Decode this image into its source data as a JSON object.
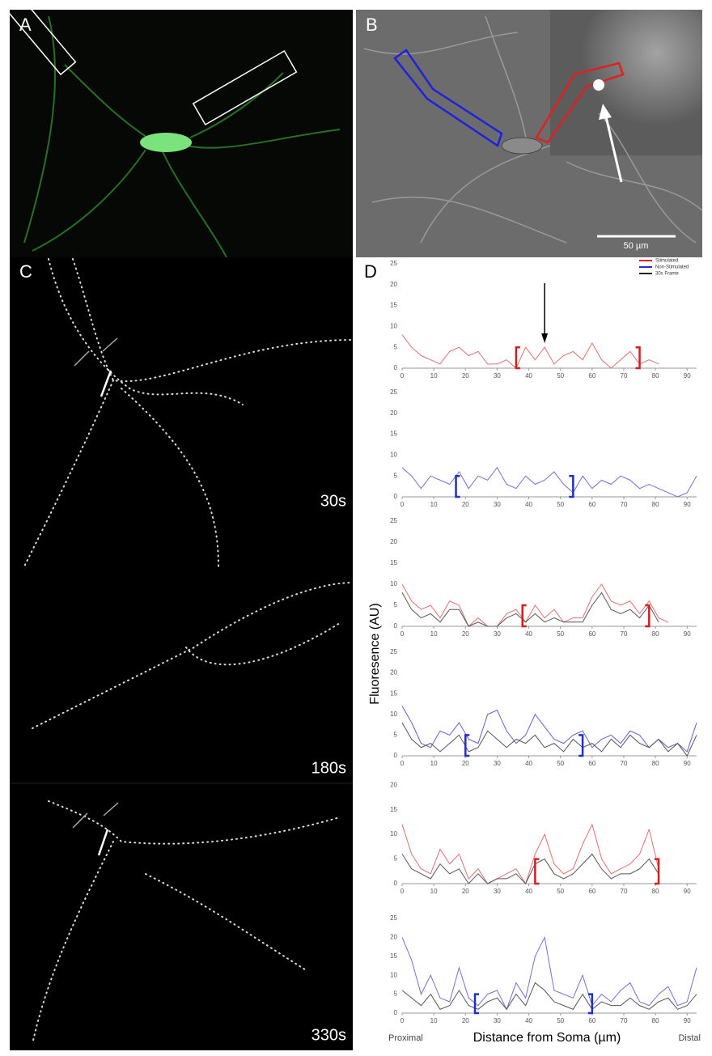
{
  "panel_labels": {
    "a": "A",
    "b": "B",
    "c": "C",
    "d": "D"
  },
  "scale_bar": "50 µm",
  "time_labels": [
    "30s",
    "180s",
    "330s"
  ],
  "legend": [
    {
      "name": "Stimulated",
      "color": "#e02020"
    },
    {
      "name": "Non-Stimulated",
      "color": "#2030d0"
    },
    {
      "name": "30s Frame",
      "color": "#222222"
    }
  ],
  "y_label": "Fluoresence (AU)",
  "x_label": "Distance from Soma (µm)",
  "x_start_label": "Proximal",
  "x_end_label": "Distal",
  "chart_data": [
    {
      "type": "line",
      "x": [
        0,
        3,
        6,
        9,
        12,
        15,
        18,
        21,
        24,
        27,
        30,
        33,
        36,
        39,
        42,
        45,
        48,
        51,
        54,
        57,
        60,
        63,
        66,
        69,
        72,
        75,
        78,
        81,
        84,
        87,
        90,
        93
      ],
      "series": [
        {
          "color": "#e07070",
          "values": [
            8,
            5,
            3,
            2,
            1,
            4,
            5,
            3,
            4,
            1,
            1,
            2,
            0,
            5,
            2,
            5,
            1,
            3,
            4,
            2,
            6,
            2,
            0,
            2,
            4,
            1,
            2,
            1,
            null,
            null,
            null,
            null
          ]
        }
      ],
      "xlim": [
        0,
        93
      ],
      "ylim": [
        0,
        25
      ],
      "xticks": [
        0,
        10,
        20,
        30,
        40,
        50,
        60,
        70,
        80,
        90
      ],
      "yticks": [
        0,
        5,
        10,
        15,
        20,
        25
      ],
      "brackets": [
        36,
        75
      ],
      "bracket_color": "#d02020",
      "arrow_x": 45
    },
    {
      "type": "line",
      "x": [
        0,
        3,
        6,
        9,
        12,
        15,
        18,
        21,
        24,
        27,
        30,
        33,
        36,
        39,
        42,
        45,
        48,
        51,
        54,
        57,
        60,
        63,
        66,
        69,
        72,
        75,
        78,
        81,
        84,
        87,
        90,
        93
      ],
      "series": [
        {
          "color": "#7070d8",
          "values": [
            7,
            5,
            2,
            5,
            4,
            3,
            6,
            2,
            5,
            4,
            7,
            3,
            2,
            5,
            3,
            4,
            6,
            3,
            1,
            5,
            2,
            4,
            3,
            5,
            4,
            2,
            3,
            2,
            1,
            0,
            1,
            5
          ]
        }
      ],
      "xlim": [
        0,
        93
      ],
      "ylim": [
        0,
        25
      ],
      "xticks": [
        0,
        10,
        20,
        30,
        40,
        50,
        60,
        70,
        80,
        90
      ],
      "yticks": [
        0,
        5,
        10,
        15,
        20,
        25
      ],
      "brackets": [
        17,
        54
      ],
      "bracket_color": "#2030c0"
    },
    {
      "type": "line",
      "x": [
        0,
        3,
        6,
        9,
        12,
        15,
        18,
        21,
        24,
        27,
        30,
        33,
        36,
        39,
        42,
        45,
        48,
        51,
        54,
        57,
        60,
        63,
        66,
        69,
        72,
        75,
        78,
        81,
        84,
        87,
        90,
        93
      ],
      "series": [
        {
          "color": "#e07070",
          "values": [
            10,
            6,
            4,
            5,
            2,
            6,
            5,
            0,
            2,
            0,
            0,
            3,
            4,
            1,
            5,
            2,
            4,
            1,
            2,
            2,
            7,
            10,
            6,
            5,
            6,
            3,
            6,
            2,
            1,
            null,
            null,
            null
          ]
        },
        {
          "color": "#555555",
          "values": [
            8,
            4,
            2,
            3,
            1,
            4,
            4,
            0,
            1,
            0,
            0,
            2,
            3,
            1,
            3,
            1,
            2,
            1,
            1,
            1,
            5,
            8,
            4,
            3,
            4,
            2,
            5,
            1,
            null,
            null,
            null,
            null
          ]
        }
      ],
      "xlim": [
        0,
        93
      ],
      "ylim": [
        0,
        25
      ],
      "xticks": [
        0,
        10,
        20,
        30,
        40,
        50,
        60,
        70,
        80,
        90
      ],
      "yticks": [
        0,
        5,
        10,
        15,
        20,
        25
      ],
      "brackets": [
        38,
        78
      ],
      "bracket_color": "#d02020"
    },
    {
      "type": "line",
      "x": [
        0,
        3,
        6,
        9,
        12,
        15,
        18,
        21,
        24,
        27,
        30,
        33,
        36,
        39,
        42,
        45,
        48,
        51,
        54,
        57,
        60,
        63,
        66,
        69,
        72,
        75,
        78,
        81,
        84,
        87,
        90,
        93
      ],
      "series": [
        {
          "color": "#6060d0",
          "values": [
            12,
            8,
            3,
            2,
            6,
            5,
            8,
            4,
            3,
            10,
            11,
            6,
            3,
            5,
            10,
            7,
            4,
            3,
            5,
            6,
            2,
            4,
            5,
            3,
            6,
            5,
            2,
            4,
            2,
            3,
            1,
            8
          ]
        },
        {
          "color": "#555555",
          "values": [
            8,
            4,
            2,
            3,
            1,
            3,
            5,
            1,
            2,
            6,
            4,
            2,
            4,
            3,
            5,
            2,
            3,
            1,
            4,
            2,
            3,
            1,
            4,
            2,
            5,
            3,
            2,
            4,
            1,
            3,
            0,
            5
          ]
        }
      ],
      "xlim": [
        0,
        93
      ],
      "ylim": [
        0,
        25
      ],
      "xticks": [
        0,
        10,
        20,
        30,
        40,
        50,
        60,
        70,
        80,
        90
      ],
      "yticks": [
        0,
        5,
        10,
        15,
        20,
        25
      ],
      "brackets": [
        20,
        57
      ],
      "bracket_color": "#2030c0"
    },
    {
      "type": "line",
      "x": [
        0,
        3,
        6,
        9,
        12,
        15,
        18,
        21,
        24,
        27,
        30,
        33,
        36,
        39,
        42,
        45,
        48,
        51,
        54,
        57,
        60,
        63,
        66,
        69,
        72,
        75,
        78,
        81,
        84,
        87,
        90,
        93
      ],
      "series": [
        {
          "color": "#e07070",
          "values": [
            12,
            6,
            3,
            2,
            7,
            4,
            6,
            1,
            3,
            0,
            1,
            2,
            3,
            0,
            6,
            10,
            4,
            2,
            3,
            8,
            12,
            5,
            2,
            3,
            4,
            6,
            11,
            3,
            null,
            null,
            null,
            null
          ]
        },
        {
          "color": "#555555",
          "values": [
            6,
            3,
            2,
            1,
            4,
            2,
            3,
            0,
            2,
            0,
            1,
            1,
            2,
            0,
            4,
            5,
            2,
            1,
            2,
            4,
            6,
            3,
            1,
            2,
            2,
            3,
            5,
            2,
            null,
            null,
            null,
            null
          ]
        }
      ],
      "xlim": [
        0,
        93
      ],
      "ylim": [
        0,
        23
      ],
      "xticks": [
        0,
        10,
        20,
        30,
        40,
        50,
        60,
        70,
        80,
        90
      ],
      "yticks": [
        0,
        5,
        10,
        15,
        20
      ],
      "brackets": [
        42,
        81
      ],
      "bracket_color": "#d02020"
    },
    {
      "type": "line",
      "x": [
        0,
        3,
        6,
        9,
        12,
        15,
        18,
        21,
        24,
        27,
        30,
        33,
        36,
        39,
        42,
        45,
        48,
        51,
        54,
        57,
        60,
        63,
        66,
        69,
        72,
        75,
        78,
        81,
        84,
        87,
        90,
        93
      ],
      "series": [
        {
          "color": "#7070d8",
          "values": [
            20,
            14,
            5,
            10,
            4,
            3,
            12,
            4,
            2,
            5,
            6,
            1,
            8,
            4,
            15,
            20,
            6,
            5,
            4,
            10,
            2,
            5,
            3,
            6,
            8,
            3,
            2,
            5,
            7,
            2,
            3,
            12
          ]
        },
        {
          "color": "#555555",
          "values": [
            6,
            4,
            2,
            5,
            1,
            2,
            6,
            2,
            1,
            3,
            4,
            1,
            5,
            2,
            8,
            6,
            3,
            2,
            1,
            5,
            1,
            3,
            2,
            2,
            4,
            2,
            1,
            3,
            4,
            1,
            2,
            5
          ]
        }
      ],
      "xlim": [
        0,
        93
      ],
      "ylim": [
        0,
        25
      ],
      "xticks": [
        0,
        10,
        20,
        30,
        40,
        50,
        60,
        70,
        80,
        90
      ],
      "yticks": [
        0,
        5,
        10,
        15,
        20,
        25
      ],
      "brackets": [
        23,
        60
      ],
      "bracket_color": "#2030c0"
    }
  ]
}
